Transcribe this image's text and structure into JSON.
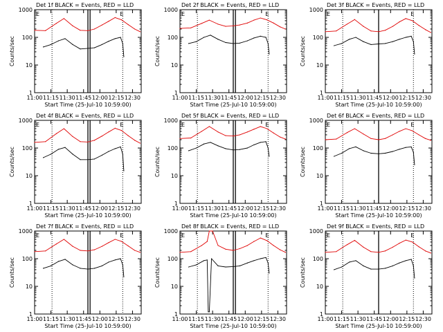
{
  "figure": {
    "xlabel": "Start Time (25-Jul-10 10:59:00)",
    "ylabel": "Counts/sec",
    "xticks": [
      "11:00",
      "11:15",
      "11:30",
      "11:45",
      "12:00",
      "12:15",
      "12:30"
    ],
    "yticks": [
      "1",
      "10",
      "100",
      "1000"
    ],
    "colors": {
      "events": "#000000",
      "lld": "#e00000",
      "axes": "#000000",
      "markers": "#000000"
    }
  },
  "chart_data": [
    {
      "type": "line",
      "title": "Det 1f BLACK = Events, RED = LLD",
      "marker_labels": [
        "E",
        "E"
      ],
      "xlim": [
        "11:00",
        "12:38"
      ],
      "ylim": [
        1,
        1000
      ],
      "yscale": "log",
      "dotted_lines": [
        "11:16",
        "12:21"
      ],
      "solid_lines": [
        "11:49",
        "11:51"
      ],
      "series": [
        {
          "x": [
            "11:00",
            "11:10",
            "11:20",
            "11:27",
            "11:35",
            "11:42",
            "11:49",
            "11:55",
            "12:02",
            "12:08",
            "12:14",
            "12:20",
            "12:26",
            "12:32",
            "12:37"
          ],
          "values": [
            180,
            175,
            320,
            480,
            260,
            180,
            175,
            200,
            280,
            380,
            520,
            430,
            290,
            200,
            160
          ]
        },
        {
          "x": [
            "11:08",
            "11:15",
            "11:22",
            "11:28",
            "11:35",
            "11:42",
            "11:49",
            "11:55",
            "12:02",
            "12:08",
            "12:14",
            "12:19",
            "12:21",
            "12:22"
          ],
          "values": [
            45,
            55,
            75,
            90,
            55,
            38,
            40,
            42,
            55,
            72,
            90,
            100,
            60,
            20
          ]
        }
      ]
    },
    {
      "type": "line",
      "title": "Det 2f BLACK = Events, RED = LLD",
      "marker_labels": [
        "E",
        "E"
      ],
      "xlim": [
        "11:00",
        "12:38"
      ],
      "ylim": [
        1,
        1000
      ],
      "yscale": "log",
      "dotted_lines": [
        "11:16",
        "12:21"
      ],
      "solid_lines": [
        "11:49",
        "11:51"
      ],
      "series": [
        {
          "x": [
            "11:00",
            "11:10",
            "11:20",
            "11:27",
            "11:35",
            "11:42",
            "11:49",
            "11:55",
            "12:02",
            "12:08",
            "12:14",
            "12:20",
            "12:26",
            "12:32",
            "12:37"
          ],
          "values": [
            210,
            220,
            320,
            420,
            300,
            250,
            260,
            280,
            330,
            420,
            500,
            430,
            330,
            240,
            200
          ]
        },
        {
          "x": [
            "11:08",
            "11:15",
            "11:22",
            "11:28",
            "11:35",
            "11:42",
            "11:49",
            "11:55",
            "12:02",
            "12:08",
            "12:14",
            "12:19",
            "12:21",
            "12:22"
          ],
          "values": [
            60,
            70,
            100,
            120,
            85,
            65,
            60,
            62,
            75,
            95,
            110,
            100,
            60,
            25
          ]
        }
      ]
    },
    {
      "type": "line",
      "title": "Det 3f BLACK = Events, RED = LLD",
      "marker_labels": [
        "E",
        "E"
      ],
      "xlim": [
        "11:00",
        "12:38"
      ],
      "ylim": [
        1,
        1000
      ],
      "yscale": "log",
      "dotted_lines": [
        "11:16",
        "12:21"
      ],
      "solid_lines": [
        "11:49"
      ],
      "series": [
        {
          "x": [
            "11:00",
            "11:10",
            "11:20",
            "11:27",
            "11:35",
            "11:42",
            "11:49",
            "11:55",
            "12:02",
            "12:08",
            "12:14",
            "12:20",
            "12:26",
            "12:32",
            "12:37"
          ],
          "values": [
            160,
            170,
            300,
            440,
            250,
            170,
            160,
            180,
            250,
            360,
            480,
            400,
            270,
            190,
            150
          ]
        },
        {
          "x": [
            "11:08",
            "11:15",
            "11:22",
            "11:28",
            "11:35",
            "11:42",
            "11:49",
            "11:55",
            "12:02",
            "12:08",
            "12:14",
            "12:19",
            "12:21",
            "12:22"
          ],
          "values": [
            50,
            60,
            85,
            100,
            70,
            55,
            58,
            60,
            70,
            85,
            100,
            110,
            70,
            25
          ]
        }
      ]
    },
    {
      "type": "line",
      "title": "Det 4f BLACK = Events, RED = LLD",
      "marker_labels": [
        "E",
        "E"
      ],
      "xlim": [
        "11:00",
        "12:38"
      ],
      "ylim": [
        1,
        1000
      ],
      "yscale": "log",
      "dotted_lines": [
        "11:16",
        "12:21"
      ],
      "solid_lines": [
        "11:49",
        "11:51"
      ],
      "series": [
        {
          "x": [
            "11:00",
            "11:10",
            "11:20",
            "11:27",
            "11:35",
            "11:42",
            "11:49",
            "11:55",
            "12:02",
            "12:08",
            "12:14",
            "12:20",
            "12:26",
            "12:32",
            "12:37"
          ],
          "values": [
            160,
            170,
            330,
            500,
            260,
            170,
            165,
            190,
            270,
            380,
            520,
            430,
            280,
            190,
            150
          ]
        },
        {
          "x": [
            "11:08",
            "11:15",
            "11:22",
            "11:28",
            "11:35",
            "11:42",
            "11:49",
            "11:55",
            "12:02",
            "12:08",
            "12:14",
            "12:19",
            "12:21",
            "12:22"
          ],
          "values": [
            45,
            60,
            90,
            105,
            60,
            38,
            38,
            40,
            55,
            75,
            95,
            110,
            60,
            15
          ]
        }
      ]
    },
    {
      "type": "line",
      "title": "Det 5f BLACK = Events, RED = LLD",
      "marker_labels": [
        "E",
        "E"
      ],
      "xlim": [
        "11:00",
        "12:38"
      ],
      "ylim": [
        1,
        1000
      ],
      "yscale": "log",
      "dotted_lines": [
        "11:16",
        "12:21"
      ],
      "solid_lines": [
        "11:49",
        "11:51"
      ],
      "series": [
        {
          "x": [
            "11:00",
            "11:10",
            "11:20",
            "11:27",
            "11:35",
            "11:42",
            "11:49",
            "11:55",
            "12:02",
            "12:08",
            "12:14",
            "12:20",
            "12:26",
            "12:32",
            "12:37"
          ],
          "values": [
            220,
            230,
            400,
            600,
            380,
            280,
            270,
            300,
            380,
            480,
            600,
            500,
            350,
            250,
            210
          ]
        },
        {
          "x": [
            "11:08",
            "11:15",
            "11:22",
            "11:28",
            "11:35",
            "11:42",
            "11:49",
            "11:55",
            "12:02",
            "12:08",
            "12:14",
            "12:19",
            "12:21",
            "12:22"
          ],
          "values": [
            80,
            100,
            140,
            160,
            120,
            95,
            85,
            88,
            100,
            130,
            160,
            170,
            100,
            50
          ]
        }
      ]
    },
    {
      "type": "line",
      "title": "Det 6f BLACK = Events, RED = LLD",
      "marker_labels": [
        "E",
        "E"
      ],
      "xlim": [
        "11:00",
        "12:38"
      ],
      "ylim": [
        1,
        1000
      ],
      "yscale": "log",
      "dotted_lines": [
        "11:16",
        "12:21"
      ],
      "solid_lines": [
        "11:49"
      ],
      "series": [
        {
          "x": [
            "11:00",
            "11:10",
            "11:20",
            "11:27",
            "11:35",
            "11:42",
            "11:49",
            "11:55",
            "12:02",
            "12:08",
            "12:14",
            "12:20",
            "12:26",
            "12:32",
            "12:37"
          ],
          "values": [
            200,
            210,
            360,
            500,
            320,
            220,
            200,
            220,
            300,
            400,
            500,
            420,
            300,
            220,
            190
          ]
        },
        {
          "x": [
            "11:08",
            "11:15",
            "11:22",
            "11:28",
            "11:35",
            "11:42",
            "11:49",
            "11:55",
            "12:02",
            "12:08",
            "12:14",
            "12:19",
            "12:21",
            "12:22"
          ],
          "values": [
            50,
            65,
            95,
            110,
            80,
            65,
            62,
            65,
            75,
            90,
            105,
            110,
            70,
            25
          ]
        }
      ]
    },
    {
      "type": "line",
      "title": "Det 7f BLACK = Events, RED = LLD",
      "marker_labels": [
        "E",
        "E"
      ],
      "xlim": [
        "11:00",
        "12:38"
      ],
      "ylim": [
        1,
        1000
      ],
      "yscale": "log",
      "dotted_lines": [
        "11:16",
        "12:21"
      ],
      "solid_lines": [
        "11:49",
        "11:51"
      ],
      "series": [
        {
          "x": [
            "11:00",
            "11:10",
            "11:20",
            "11:27",
            "11:35",
            "11:42",
            "11:49",
            "11:55",
            "12:02",
            "12:08",
            "12:14",
            "12:20",
            "12:26",
            "12:32",
            "12:37"
          ],
          "values": [
            180,
            190,
            340,
            500,
            280,
            200,
            190,
            210,
            280,
            380,
            500,
            420,
            290,
            200,
            170
          ]
        },
        {
          "x": [
            "11:08",
            "11:15",
            "11:22",
            "11:28",
            "11:35",
            "11:42",
            "11:49",
            "11:55",
            "12:02",
            "12:08",
            "12:14",
            "12:19",
            "12:21",
            "12:22"
          ],
          "values": [
            45,
            55,
            80,
            95,
            60,
            45,
            42,
            45,
            55,
            75,
            90,
            100,
            60,
            22
          ]
        }
      ]
    },
    {
      "type": "line",
      "title": "Det 8f BLACK = Events, RED = LLD",
      "marker_labels": [
        "E",
        "E"
      ],
      "xlim": [
        "11:00",
        "12:38"
      ],
      "ylim": [
        1,
        1000
      ],
      "yscale": "log",
      "dotted_lines": [
        "11:16",
        "12:21"
      ],
      "solid_lines": [
        "11:49",
        "11:51"
      ],
      "series": [
        {
          "x": [
            "11:00",
            "11:10",
            "11:20",
            "11:25",
            "11:27",
            "11:30",
            "11:35",
            "11:42",
            "11:49",
            "11:55",
            "12:02",
            "12:08",
            "12:14",
            "12:20",
            "12:26",
            "12:32",
            "12:37"
          ],
          "values": [
            170,
            180,
            300,
            420,
            1000,
            1000,
            300,
            220,
            200,
            230,
            300,
            420,
            560,
            450,
            300,
            210,
            170
          ]
        },
        {
          "x": [
            "11:08",
            "11:15",
            "11:22",
            "11:25",
            "11:26",
            "11:27",
            "11:29",
            "11:35",
            "11:42",
            "11:49",
            "11:55",
            "12:02",
            "12:08",
            "12:14",
            "12:19",
            "12:21",
            "12:22"
          ],
          "values": [
            50,
            60,
            85,
            90,
            1.2,
            1.2,
            100,
            55,
            50,
            52,
            55,
            70,
            85,
            100,
            110,
            70,
            30
          ]
        }
      ]
    },
    {
      "type": "line",
      "title": "Det 9f BLACK = Events, RED = LLD",
      "marker_labels": [
        "E",
        "E"
      ],
      "xlim": [
        "11:00",
        "12:38"
      ],
      "ylim": [
        1,
        1000
      ],
      "yscale": "log",
      "dotted_lines": [
        "11:16",
        "12:21"
      ],
      "solid_lines": [
        "11:49"
      ],
      "series": [
        {
          "x": [
            "11:00",
            "11:10",
            "11:20",
            "11:27",
            "11:35",
            "11:42",
            "11:49",
            "11:55",
            "12:02",
            "12:08",
            "12:14",
            "12:20",
            "12:26",
            "12:32",
            "12:37"
          ],
          "values": [
            170,
            180,
            320,
            460,
            260,
            180,
            170,
            190,
            260,
            360,
            470,
            400,
            270,
            190,
            160
          ]
        },
        {
          "x": [
            "11:08",
            "11:15",
            "11:22",
            "11:28",
            "11:35",
            "11:42",
            "11:49",
            "11:55",
            "12:02",
            "12:08",
            "12:14",
            "12:19",
            "12:21",
            "12:22"
          ],
          "values": [
            40,
            50,
            75,
            85,
            55,
            42,
            42,
            45,
            55,
            70,
            85,
            95,
            55,
            20
          ]
        }
      ]
    }
  ]
}
